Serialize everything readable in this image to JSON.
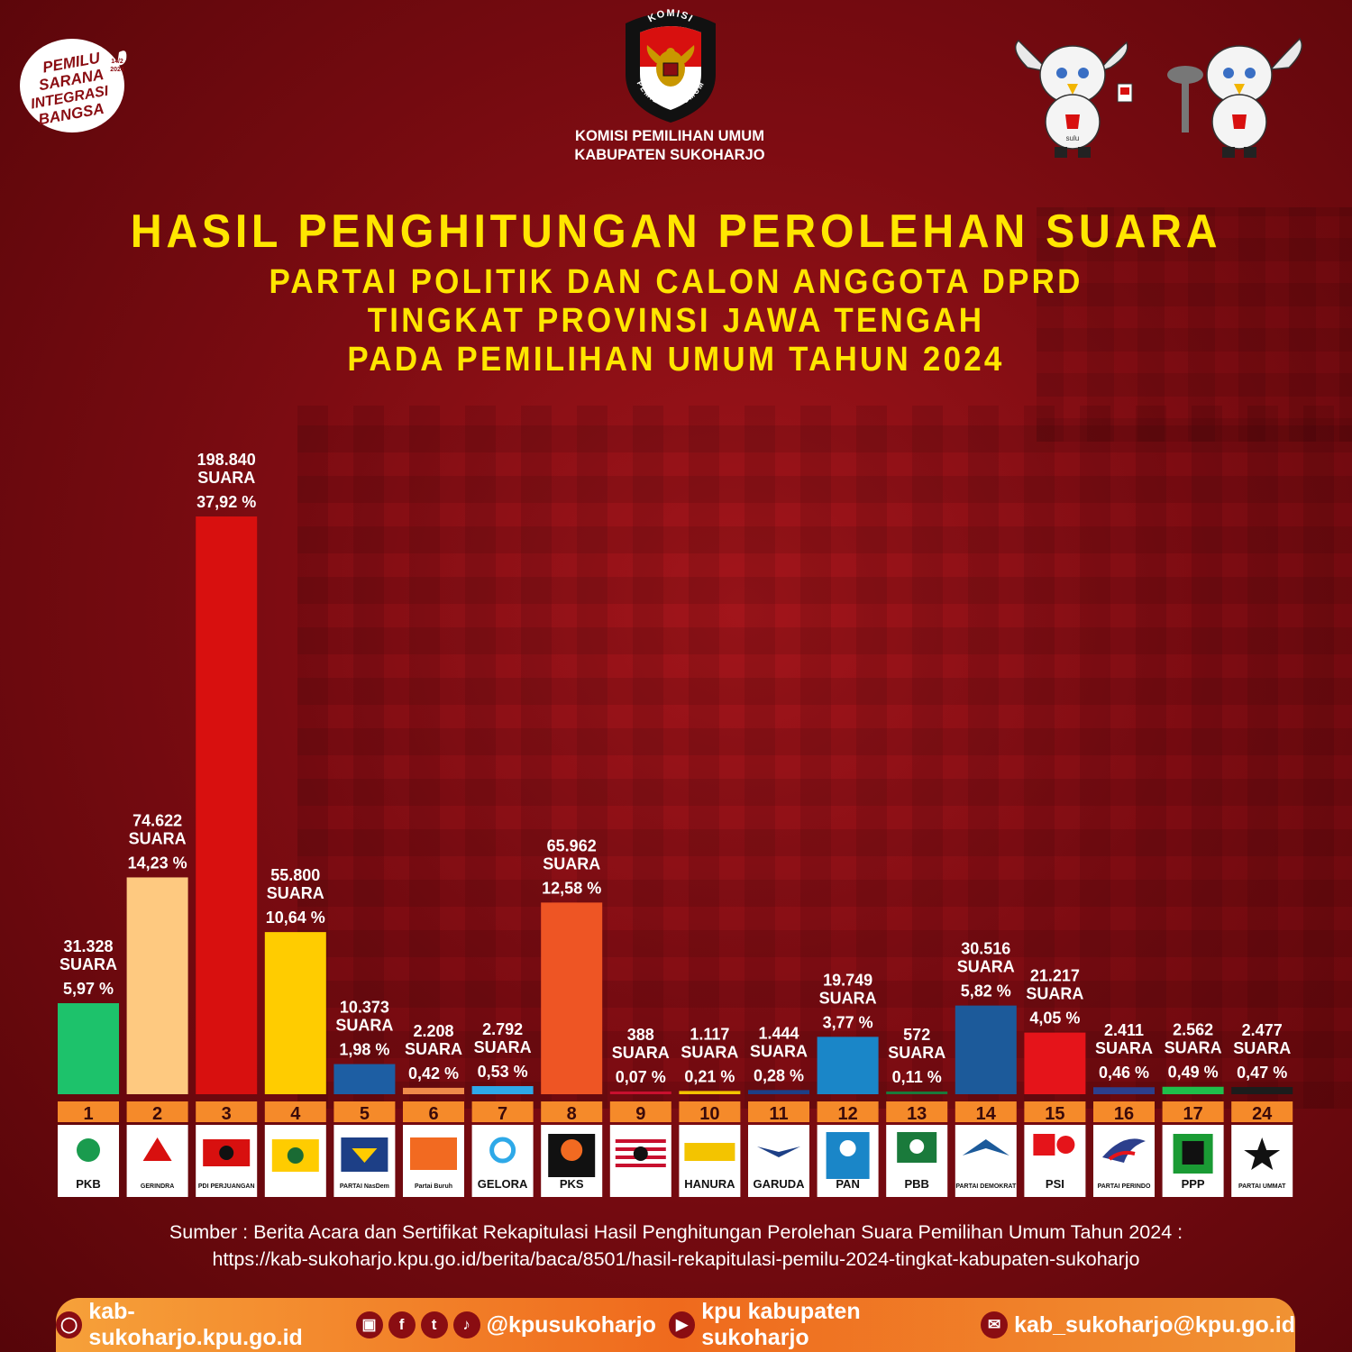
{
  "badge": {
    "lines": [
      "PEMILU",
      "SARANA",
      "INTEGRASI",
      "BANGSA"
    ],
    "date": [
      "14/2",
      "2024"
    ]
  },
  "logo": {
    "top_text": "KOMISI",
    "bottom_text": "PEMILIHAN UMUM"
  },
  "org": {
    "line1": "KOMISI PEMILIHAN UMUM",
    "line2": "KABUPATEN SUKOHARJO"
  },
  "mascot": {
    "label": "sulu"
  },
  "header": {
    "title": "HASIL PENGHITUNGAN PEROLEHAN SUARA",
    "subtitle_1": "PARTAI POLITIK DAN CALON ANGGOTA DPRD",
    "subtitle_2": "TINGKAT PROVINSI JAWA TENGAH",
    "subtitle_3": "PADA PEMILIHAN UMUM TAHUN 2024"
  },
  "chart_data": {
    "type": "bar",
    "categories": [
      "1",
      "2",
      "3",
      "4",
      "5",
      "6",
      "7",
      "8",
      "9",
      "10",
      "11",
      "12",
      "13",
      "14",
      "15",
      "16",
      "17",
      "24"
    ],
    "values": [
      31328,
      74622,
      198840,
      55800,
      10373,
      2208,
      2792,
      65962,
      388,
      1117,
      1444,
      19749,
      572,
      30516,
      21217,
      2411,
      2562,
      2477
    ],
    "value_labels": [
      "31.328",
      "74.622",
      "198.840",
      "55.800",
      "10.373",
      "2.208",
      "2.792",
      "65.962",
      "388",
      "1.117",
      "1.444",
      "19.749",
      "572",
      "30.516",
      "21.217",
      "2.411",
      "2.562",
      "2.477"
    ],
    "unit_label": "SUARA",
    "percent_labels": [
      "5,97 %",
      "14,23 %",
      "37,92 %",
      "10,64 %",
      "1,98 %",
      "0,42 %",
      "0,53 %",
      "12,58 %",
      "0,07 %",
      "0,21 %",
      "0,28 %",
      "3,77 %",
      "0,11 %",
      "5,82 %",
      "4,05 %",
      "0,46 %",
      "0,49 %",
      "0,47 %"
    ],
    "party_logo_text": [
      "PKB",
      "GERINDRA",
      "PDI PERJUANGAN",
      "",
      "PARTAI NasDem",
      "Partai Buruh",
      "GELORA",
      "PKS",
      "",
      "HANURA",
      "GARUDA",
      "PAN",
      "PBB",
      "PARTAI DEMOKRAT",
      "PSI",
      "PARTAI PERINDO",
      "PPP",
      "PARTAI UMMAT"
    ],
    "colors": [
      "#1dc26b",
      "#fec980",
      "#d8100f",
      "#ffcc00",
      "#1d5ea3",
      "#ef8a4a",
      "#2ea9e8",
      "#ee5524",
      "#c8102e",
      "#f3c400",
      "#1d3f86",
      "#1a86c8",
      "#1a7a3b",
      "#1c5a9a",
      "#e5141a",
      "#2c3f8c",
      "#1fbf4b",
      "#1c1c1c"
    ],
    "xlabel": "",
    "ylabel": "",
    "ylim": [
      0,
      200000
    ],
    "grid": false,
    "legend": "none"
  },
  "source": {
    "line1": "Sumber : Berita Acara dan Sertifikat Rekapitulasi Hasil Penghitungan Perolehan Suara Pemilihan Umum Tahun 2024 :",
    "line2": "https://kab-sukoharjo.kpu.go.id/berita/baca/8501/hasil-rekapitulasi-pemilu-2024-tingkat-kabupaten-sukoharjo"
  },
  "footer": {
    "website": "kab-sukoharjo.kpu.go.id",
    "social_handle": "@kpusukoharjo",
    "youtube": "kpu kabupaten sukoharjo",
    "email": "kab_sukoharjo@kpu.go.id",
    "icons": [
      "globe-icon",
      "instagram-icon",
      "facebook-icon",
      "twitter-icon",
      "tiktok-icon",
      "youtube-icon",
      "mail-icon"
    ]
  }
}
